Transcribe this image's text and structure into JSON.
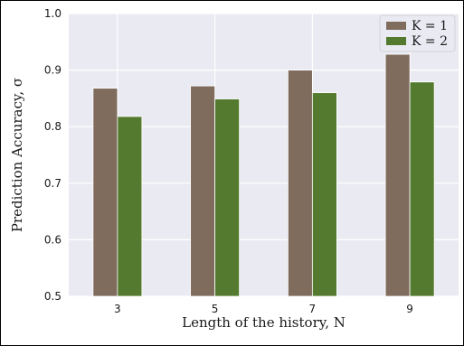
{
  "chart_data": {
    "type": "bar",
    "categories": [
      "3",
      "5",
      "7",
      "9"
    ],
    "series": [
      {
        "name": "K = 1",
        "values": [
          0.868,
          0.872,
          0.9,
          0.928
        ],
        "color": "#7f6c5d"
      },
      {
        "name": "K = 2",
        "values": [
          0.818,
          0.849,
          0.86,
          0.879
        ],
        "color": "#537a2e"
      }
    ],
    "title": "",
    "xlabel": "Length of the history, N",
    "ylabel": "Prediction Accuracy, σ",
    "ylim": [
      0.5,
      1.0
    ],
    "yticks": [
      "0.5",
      "0.6",
      "0.7",
      "0.8",
      "0.9",
      "1.0"
    ],
    "grid": true,
    "legend_position": "top-right",
    "background_color": "#eaeaf2",
    "grid_color": "#ffffff"
  }
}
